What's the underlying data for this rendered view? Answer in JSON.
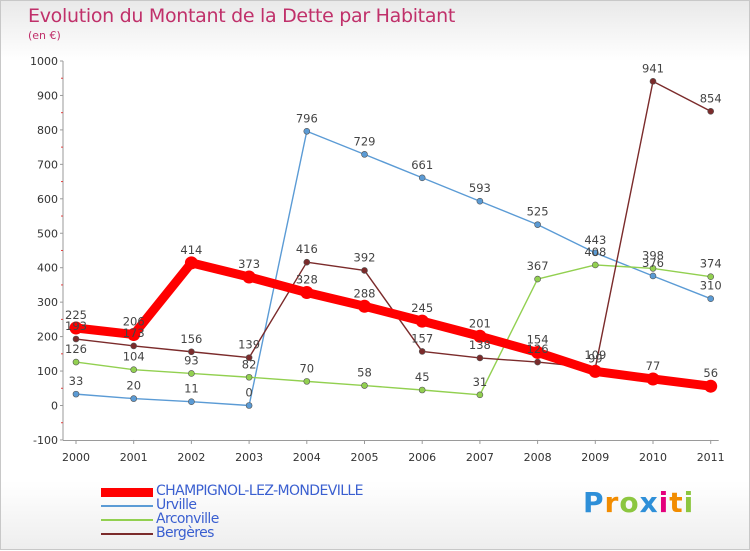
{
  "title": "Evolution du Montant de la Dette par Habitant",
  "unit": "(en €)",
  "chart_data": {
    "type": "line",
    "title": "Evolution du Montant de la Dette par Habitant",
    "ylabel": "(en €)",
    "xlabel": "",
    "categories": [
      "2000",
      "2001",
      "2002",
      "2003",
      "2004",
      "2005",
      "2006",
      "2007",
      "2008",
      "2009",
      "2010",
      "2011"
    ],
    "ylim": [
      -100,
      1000
    ],
    "yticks": [
      "-100",
      "0",
      "100",
      "200",
      "300",
      "400",
      "500",
      "600",
      "700",
      "800",
      "900",
      "1000"
    ],
    "grid": false,
    "legend_position": "bottom-left",
    "series": [
      {
        "name": "CHAMPIGNOL-LEZ-MONDEVILLE",
        "color": "#ff0000",
        "values": [
          225,
          206,
          414,
          373,
          328,
          288,
          245,
          201,
          154,
          99,
          77,
          56
        ],
        "labels": [
          "225",
          "206",
          "414",
          "373",
          "328",
          "288",
          "245",
          "201",
          "154",
          "99",
          "77",
          "56"
        ]
      },
      {
        "name": "Urville",
        "color": "#5b9bd5",
        "values": [
          33,
          20,
          11,
          0,
          796,
          729,
          661,
          593,
          525,
          443,
          376,
          310
        ],
        "labels": [
          "33",
          "20",
          "11",
          "0",
          "796",
          "729",
          "661",
          "593",
          "525",
          "443",
          "376",
          "310"
        ]
      },
      {
        "name": "Arconville",
        "color": "#92d050",
        "values": [
          126,
          104,
          93,
          82,
          70,
          58,
          45,
          31,
          367,
          408,
          398,
          374
        ],
        "labels": [
          "126",
          "104",
          "93",
          "82",
          "70",
          "58",
          "45",
          "31",
          "367",
          "408",
          "398",
          "374"
        ]
      },
      {
        "name": "Bergères",
        "color": "#7b2b2b",
        "values": [
          193,
          173,
          156,
          139,
          416,
          392,
          157,
          138,
          126,
          109,
          941,
          854
        ],
        "labels": [
          "193",
          "173",
          "156",
          "139",
          "416",
          "392",
          "157",
          "138",
          "126",
          "109",
          "941",
          "854"
        ]
      }
    ]
  },
  "logo": {
    "letters": [
      "P",
      "r",
      "o",
      "x",
      "i",
      "t",
      "i"
    ],
    "colors": [
      "#2e8fd8",
      "#f28c00",
      "#8cc63f",
      "#2e8fd8",
      "#e4007c",
      "#f28c00",
      "#8cc63f"
    ]
  }
}
